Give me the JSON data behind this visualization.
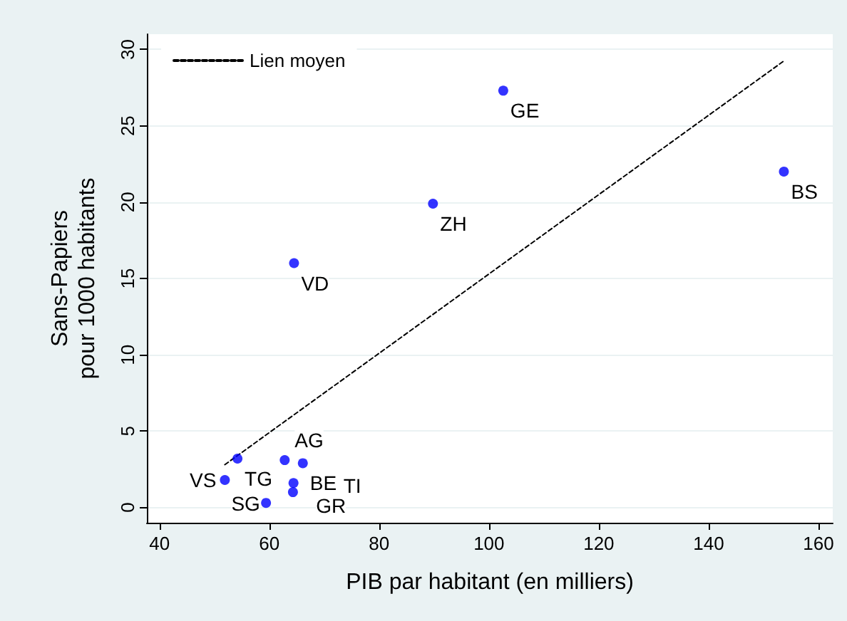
{
  "chart_data": {
    "type": "scatter",
    "xlabel": "PIB par habitant (en milliers)",
    "ylabel": "Sans-Papiers\npour 1000 habitants",
    "xlim": [
      37.7,
      162.6
    ],
    "xticks": [
      40,
      60,
      80,
      100,
      120,
      140,
      160
    ],
    "ylim": [
      -1,
      31
    ],
    "yticks": [
      0,
      5,
      10,
      15,
      20,
      25,
      30
    ],
    "grid": "y",
    "legend": "top left",
    "marker": "circle",
    "series": [
      {
        "color": "#0000ff",
        "x": [
          102.6,
          153.7,
          89.8,
          64.5,
          54.2,
          51.9,
          62.8,
          66.1,
          64.4,
          64.3,
          59.4
        ],
        "values": [
          27.3,
          22.0,
          19.9,
          16.0,
          3.2,
          1.8,
          3.1,
          2.9,
          1.6,
          1.0,
          0.3
        ]
      },
      {
        "type": "line",
        "name": "Lien moyen",
        "color": "#000000",
        "line_style": "dashed",
        "marker": "none",
        "x": [
          51.9,
          153.9
        ],
        "values": [
          2.8,
          29.3
        ]
      }
    ],
    "annotations": [
      {
        "text": "GE",
        "x": 102.6,
        "y": 27.3
      },
      {
        "text": "BS",
        "x": 153.7,
        "y": 22.0
      },
      {
        "text": "ZH",
        "x": 89.8,
        "y": 19.9
      },
      {
        "text": "VD",
        "x": 64.5,
        "y": 16.0
      },
      {
        "text": "TG",
        "x": 54.2,
        "y": 3.2
      },
      {
        "text": "VS",
        "x": 51.9,
        "y": 1.8
      },
      {
        "text": "AG",
        "x": 62.8,
        "y": 3.1
      },
      {
        "text": "BE",
        "x": 66.1,
        "y": 2.9
      },
      {
        "text": "TI",
        "x": 64.4,
        "y": 1.6
      },
      {
        "text": "SG",
        "x": 64.3,
        "y": 1.0
      },
      {
        "text": "GR",
        "x": 59.4,
        "y": 0.3
      }
    ]
  }
}
